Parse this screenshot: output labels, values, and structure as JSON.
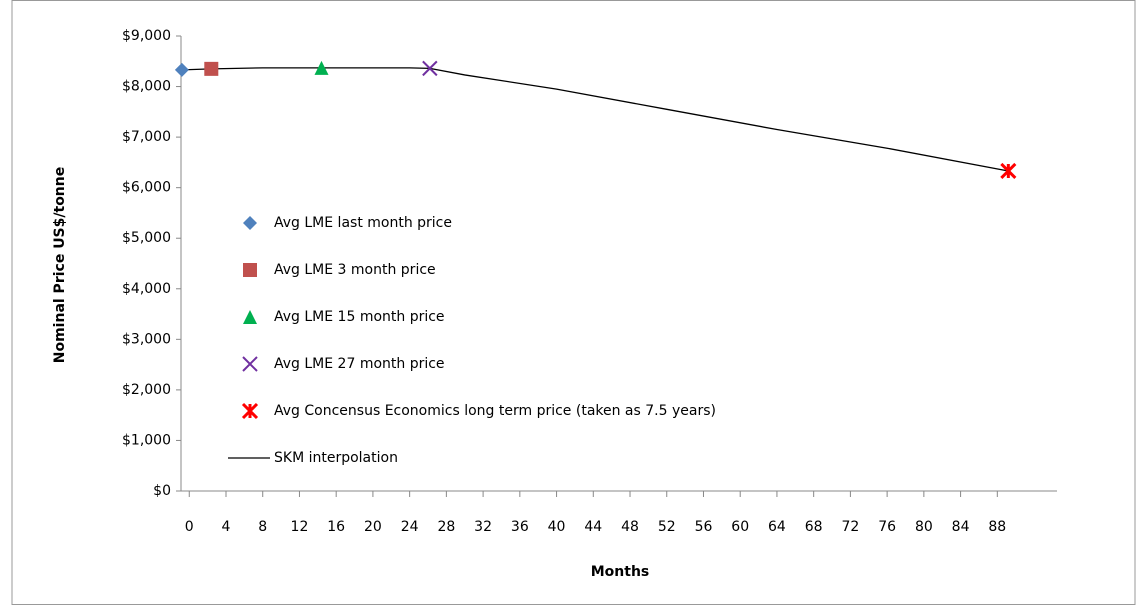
{
  "chart_data": {
    "type": "scatter",
    "xlabel": "Months",
    "ylabel": "Nominal Price US$/tonne",
    "xlim": [
      -0.9,
      94.5
    ],
    "ylim": [
      0,
      9000
    ],
    "xticks": [
      0,
      4,
      8,
      12,
      16,
      20,
      24,
      28,
      32,
      36,
      40,
      44,
      48,
      52,
      56,
      60,
      64,
      68,
      72,
      76,
      80,
      84,
      88
    ],
    "yticks": [
      {
        "value": 0,
        "label": "$0"
      },
      {
        "value": 1000,
        "label": "$1,000"
      },
      {
        "value": 2000,
        "label": "$2,000"
      },
      {
        "value": 3000,
        "label": "$3,000"
      },
      {
        "value": 4000,
        "label": "$4,000"
      },
      {
        "value": 5000,
        "label": "$5,000"
      },
      {
        "value": 6000,
        "label": "$6,000"
      },
      {
        "value": 7000,
        "label": "$7,000"
      },
      {
        "value": 8000,
        "label": "$8,000"
      },
      {
        "value": 9000,
        "label": "$9,000"
      }
    ],
    "series": [
      {
        "name": "Avg LME last month price",
        "color": "#4f81bd",
        "marker": "diamond",
        "x": [
          -0.8
        ],
        "values": [
          8330
        ]
      },
      {
        "name": "Avg LME 3 month price",
        "color": "#c0504d",
        "marker": "square",
        "x": [
          2.4
        ],
        "values": [
          8350
        ]
      },
      {
        "name": "Avg LME 15 month price",
        "color": "#00b050",
        "marker": "triangle",
        "x": [
          14.4
        ],
        "values": [
          8370
        ]
      },
      {
        "name": "Avg LME 27 month price",
        "color": "#7030a0",
        "marker": "x",
        "x": [
          26.2
        ],
        "values": [
          8360
        ]
      },
      {
        "name": "Avg Concensus Economics long term price (taken as 7.5 years)",
        "color": "#ff0000",
        "marker": "star",
        "x": [
          89.2
        ],
        "values": [
          6330
        ]
      },
      {
        "name": "SKM interpolation",
        "color": "#000000",
        "marker": "line",
        "x": [
          -0.8,
          2.4,
          8,
          14.4,
          24,
          26.2,
          30,
          40,
          52,
          64,
          76,
          89.2
        ],
        "values": [
          8330,
          8350,
          8370,
          8370,
          8370,
          8360,
          8230,
          7950,
          7550,
          7150,
          6780,
          6330
        ]
      }
    ]
  }
}
